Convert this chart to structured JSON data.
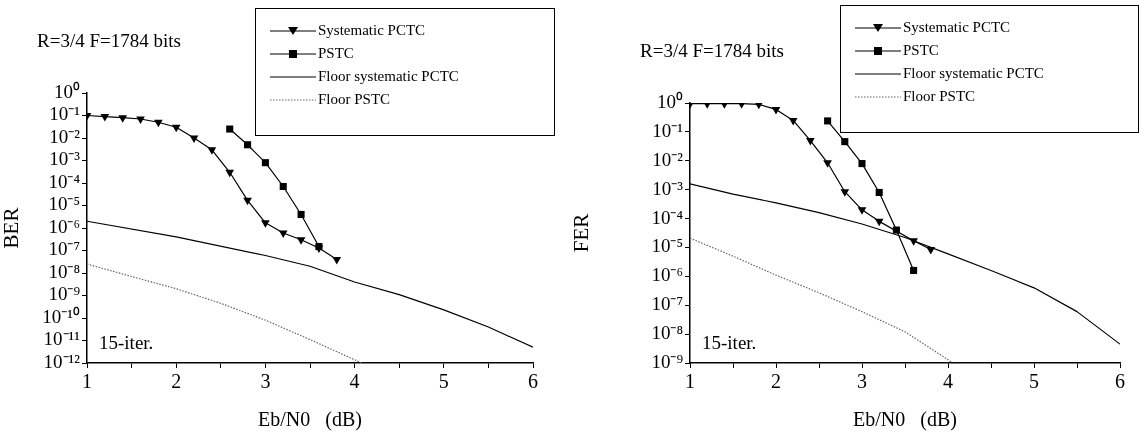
{
  "chart_data": [
    {
      "type": "line",
      "title": "R=3/4 F=1784 bits",
      "xlabel": "Eb/N0   (dB)",
      "ylabel": "BER",
      "log": "y",
      "grid": false,
      "legend": "top right",
      "annotations": [
        "15-iter."
      ],
      "xlim": [
        1,
        6
      ],
      "xticks": [
        1,
        {
          "value": 1.5,
          "label": null
        },
        2,
        {
          "value": 2.5,
          "label": null
        },
        3,
        {
          "value": 3.5,
          "label": null
        },
        4,
        {
          "value": 4.5,
          "label": null
        },
        5,
        {
          "value": 5.5,
          "label": null
        },
        6
      ],
      "ylim": [
        1e-12,
        1
      ],
      "yticks": [
        {
          "value": 1e-12,
          "label": "10⁻¹²"
        },
        {
          "value": 1e-11,
          "label": "10⁻¹¹"
        },
        {
          "value": 1e-10,
          "label": "10⁻¹⁰"
        },
        {
          "value": 1e-09,
          "label": "10⁻⁹"
        },
        {
          "value": 1e-08,
          "label": "10⁻⁸"
        },
        {
          "value": 1e-07,
          "label": "10⁻⁷"
        },
        {
          "value": 1e-06,
          "label": "10⁻⁶"
        },
        {
          "value": 1e-05,
          "label": "10⁻⁵"
        },
        {
          "value": 0.0001,
          "label": "10⁻⁴"
        },
        {
          "value": 0.001,
          "label": "10⁻³"
        },
        {
          "value": 0.01,
          "label": "10⁻²"
        },
        {
          "value": 0.1,
          "label": "10⁻¹"
        },
        {
          "value": 1,
          "label": "10⁰"
        }
      ],
      "series": [
        {
          "name": "Systematic PCTC",
          "color": "#000000",
          "marker": "triangle",
          "line_style": "solid",
          "x": [
            1,
            1.2,
            1.4,
            1.6,
            1.8,
            2,
            2.2,
            2.4,
            2.6,
            2.8,
            3,
            3.2,
            3.4,
            3.6,
            3.8
          ],
          "values": [
            0.1,
            0.09,
            0.08,
            0.07,
            0.05,
            0.03,
            0.01,
            0.003,
            0.0003,
            1.7e-05,
            1.7e-06,
            6e-07,
            3e-07,
            1.3e-07,
            4e-08
          ]
        },
        {
          "name": "PSTC",
          "color": "#000000",
          "marker": "square",
          "line_style": "solid",
          "x": [
            2.6,
            2.8,
            3,
            3.2,
            3.4,
            3.6
          ],
          "values": [
            0.025,
            0.005,
            0.0008,
            7e-05,
            4e-06,
            1.5e-07
          ]
        },
        {
          "name": "Floor systematic PCTC",
          "color": "#000000",
          "marker": "none",
          "line_style": "solid",
          "x": [
            1,
            2,
            3,
            3.5,
            4,
            4.5,
            5,
            5.5,
            6
          ],
          "values": [
            2e-06,
            4e-07,
            6e-08,
            2e-08,
            4e-09,
            1.1e-09,
            2.3e-10,
            4e-11,
            5e-12
          ]
        },
        {
          "name": "Floor PSTC",
          "color": "#666666",
          "marker": "none",
          "line_style": "dotted",
          "x": [
            1,
            1.5,
            2,
            2.5,
            3,
            3.5,
            4,
            4.08
          ],
          "values": [
            2.5e-08,
            7e-09,
            2e-09,
            4.5e-10,
            8e-11,
            1.1e-11,
            1.4e-12,
            1e-12
          ]
        }
      ]
    },
    {
      "type": "line",
      "title": "R=3/4 F=1784 bits",
      "xlabel": "Eb/N0   (dB)",
      "ylabel": "FER",
      "log": "y",
      "grid": false,
      "legend": "top right",
      "annotations": [
        "15-iter."
      ],
      "xlim": [
        1,
        6
      ],
      "xticks": [
        1,
        {
          "value": 1.5,
          "label": null
        },
        2,
        {
          "value": 2.5,
          "label": null
        },
        3,
        {
          "value": 3.5,
          "label": null
        },
        4,
        {
          "value": 4.5,
          "label": null
        },
        5,
        {
          "value": 5.5,
          "label": null
        },
        6
      ],
      "ylim": [
        1e-09,
        1
      ],
      "yticks": [
        {
          "value": 1e-09,
          "label": "10⁻⁹"
        },
        {
          "value": 1e-08,
          "label": "10⁻⁸"
        },
        {
          "value": 1e-07,
          "label": "10⁻⁷"
        },
        {
          "value": 1e-06,
          "label": "10⁻⁶"
        },
        {
          "value": 1e-05,
          "label": "10⁻⁵"
        },
        {
          "value": 0.0001,
          "label": "10⁻⁴"
        },
        {
          "value": 0.001,
          "label": "10⁻³"
        },
        {
          "value": 0.01,
          "label": "10⁻²"
        },
        {
          "value": 0.1,
          "label": "10⁻¹"
        },
        {
          "value": 1,
          "label": "10⁰"
        }
      ],
      "series": [
        {
          "name": "Systematic PCTC",
          "color": "#000000",
          "marker": "triangle",
          "line_style": "solid",
          "x": [
            1,
            1.2,
            1.4,
            1.6,
            1.8,
            2,
            2.2,
            2.4,
            2.6,
            2.8,
            3,
            3.2,
            3.4,
            3.6,
            3.8
          ],
          "values": [
            0.95,
            0.95,
            0.95,
            0.95,
            0.9,
            0.6,
            0.25,
            0.05,
            0.0085,
            0.00085,
            0.0002,
            8e-05,
            null,
            1.7e-05,
            8.5e-06
          ]
        },
        {
          "name": "PSTC",
          "color": "#000000",
          "marker": "square",
          "line_style": "solid",
          "x": [
            2.6,
            2.8,
            3,
            3.2,
            3.4,
            3.6
          ],
          "values": [
            0.24,
            0.046,
            0.008,
            0.0008,
            4e-05,
            1.6e-06
          ]
        },
        {
          "name": "Floor systematic PCTC",
          "color": "#000000",
          "marker": "none",
          "line_style": "solid",
          "x": [
            1,
            1.5,
            2,
            2.5,
            3,
            3.5,
            4,
            4.5,
            5,
            5.5,
            6
          ],
          "values": [
            0.0016,
            0.0007,
            0.00035,
            0.00016,
            6.5e-05,
            2.2e-05,
            6e-06,
            1.6e-06,
            4e-07,
            6e-08,
            4.5e-09
          ]
        },
        {
          "name": "Floor PSTC",
          "color": "#666666",
          "marker": "none",
          "line_style": "dotted",
          "x": [
            1,
            1.5,
            2,
            2.5,
            3,
            3.5,
            4,
            4.05
          ],
          "values": [
            2.1e-05,
            5e-06,
            1.1e-06,
            2.7e-07,
            6e-08,
            1.2e-08,
            1.3e-09,
            1e-09
          ]
        }
      ]
    }
  ]
}
